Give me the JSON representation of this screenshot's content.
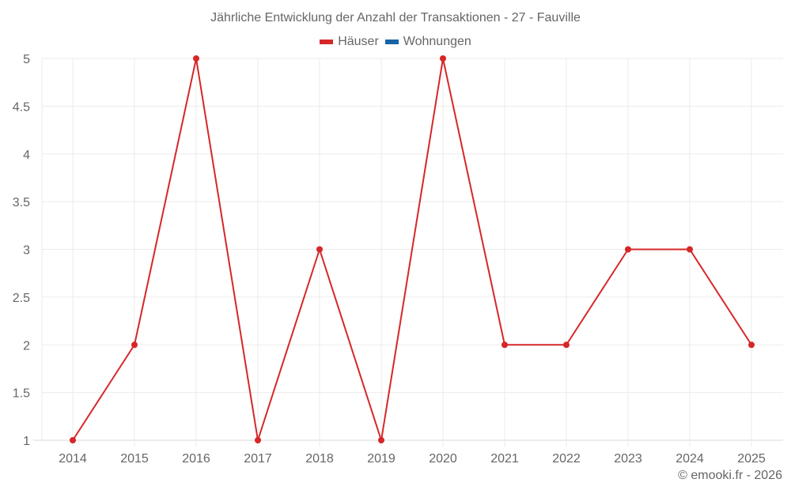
{
  "title": "Jährliche Entwicklung der Anzahl der Transaktionen - 27 - Fauville",
  "legend": [
    {
      "label": "Häuser",
      "color": "#d62728"
    },
    {
      "label": "Wohnungen",
      "color": "#1565a6"
    }
  ],
  "copyright": "© emooki.fr - 2026",
  "chart_data": {
    "type": "line",
    "title": "Jährliche Entwicklung der Anzahl der Transaktionen - 27 - Fauville",
    "xlabel": "",
    "ylabel": "",
    "categories": [
      "2014",
      "2015",
      "2016",
      "2017",
      "2018",
      "2019",
      "2020",
      "2021",
      "2022",
      "2023",
      "2024",
      "2025"
    ],
    "series": [
      {
        "name": "Häuser",
        "color": "#d62728",
        "values": [
          1,
          2,
          5,
          1,
          3,
          1,
          5,
          2,
          2,
          3,
          3,
          2
        ]
      },
      {
        "name": "Wohnungen",
        "color": "#1565a6",
        "values": []
      }
    ],
    "ylim": [
      1,
      5
    ],
    "yticks": [
      "1",
      "1.5",
      "2",
      "2.5",
      "3",
      "3.5",
      "4",
      "4.5",
      "5"
    ],
    "grid": true,
    "legend_position": "top"
  }
}
